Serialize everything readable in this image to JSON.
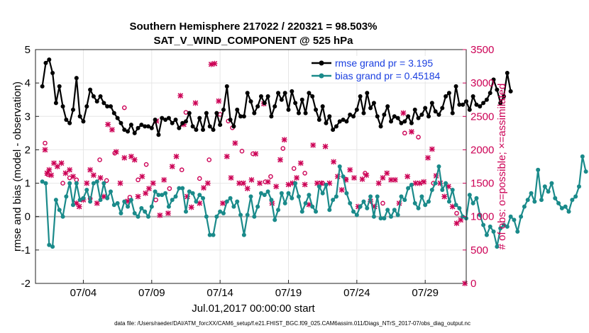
{
  "chart_data": {
    "type": "line",
    "title": "Southern Hemisphere 217022 / 220321 = 98.503%",
    "subtitle": "SAT_V_WIND_COMPONENT @ 525 hPa",
    "xlabel": "Jul.01,2017 00:00:00 start",
    "ylabel_left": "rmse and bias (model - observation)",
    "ylabel_right": "# of obs: o=possible; ×=assimilated",
    "footer": "data file: /Users/raeder/DAI/ATM_forcXX/CAM6_setup/f.e21.FHIST_BGC.f09_025.CAM6assim.011/Diags_NTrS_2017-07/obs_diag_output.nc",
    "xlim": [
      0.5,
      32.0
    ],
    "ylim_left": [
      -2,
      5
    ],
    "ylim_right": [
      0,
      3500
    ],
    "x_ticks": [
      {
        "value": 4,
        "label": "07/04"
      },
      {
        "value": 9,
        "label": "07/09"
      },
      {
        "value": 14,
        "label": "07/14"
      },
      {
        "value": 19,
        "label": "07/19"
      },
      {
        "value": 24,
        "label": "07/24"
      },
      {
        "value": 29,
        "label": "07/29"
      }
    ],
    "y_ticks_left": [
      "-2",
      "-1",
      "0",
      "1",
      "2",
      "3",
      "4",
      "5"
    ],
    "y_ticks_right": [
      "0",
      "500",
      "1000",
      "1500",
      "2000",
      "2500",
      "3000",
      "3500"
    ],
    "x_start": 1.0,
    "x_step": 0.25,
    "series": [
      {
        "name": "rmse grand pr = 3.195",
        "color": "#000000",
        "values": [
          3.9,
          4.6,
          4.7,
          4.3,
          3.4,
          3.9,
          3.3,
          2.9,
          2.8,
          3.2,
          4.15,
          3.0,
          2.85,
          3.3,
          3.8,
          3.6,
          3.45,
          3.6,
          3.4,
          3.3,
          3.3,
          3.1,
          2.95,
          2.8,
          2.6,
          2.55,
          2.75,
          2.5,
          2.65,
          2.75,
          2.7,
          2.7,
          2.65,
          2.9,
          2.45,
          2.95,
          2.9,
          2.95,
          2.8,
          2.9,
          2.65,
          2.8,
          2.85,
          3.1,
          2.7,
          2.6,
          2.95,
          2.6,
          3.1,
          2.7,
          2.6,
          3.1,
          2.75,
          3.2,
          3.9,
          2.9,
          2.7,
          3.2,
          3.0,
          3.0,
          3.7,
          3.45,
          3.1,
          3.3,
          3.6,
          3.4,
          3.6,
          3.0,
          3.3,
          3.7,
          3.5,
          3.7,
          3.2,
          3.75,
          3.4,
          3.1,
          3.5,
          3.1,
          3.7,
          3.6,
          3.2,
          2.9,
          3.3,
          2.8,
          3.0,
          2.6,
          2.7,
          2.85,
          2.9,
          2.85,
          3.05,
          3.0,
          3.2,
          3.6,
          3.1,
          3.7,
          3.25,
          3.4,
          3.0,
          2.7,
          3.05,
          3.3,
          2.85,
          3.0,
          2.95,
          2.8,
          2.85,
          3.0,
          2.8,
          3.2,
          2.95,
          3.05,
          3.25,
          3.0,
          3.4,
          3.15,
          3.05,
          3.25,
          3.6,
          3.7,
          3.1,
          3.9,
          3.35,
          3.35,
          3.45,
          3.2,
          3.6,
          3.35,
          3.3,
          3.4,
          3.5,
          3.7,
          4.1,
          3.8,
          3.4,
          3.6,
          4.3,
          3.75
        ]
      },
      {
        "name": "bias grand pr = 0.45184",
        "color": "#1a8a8a",
        "values": [
          1.05,
          1.0,
          -0.85,
          -0.9,
          0.5,
          0.2,
          0.0,
          0.6,
          1.0,
          0.35,
          1.0,
          0.5,
          0.55,
          0.8,
          0.45,
          1.0,
          1.05,
          0.5,
          1.0,
          0.55,
          0.75,
          0.35,
          0.4,
          0.1,
          0.45,
          0.3,
          0.5,
          0.1,
          0.0,
          0.25,
          0.15,
          0.0,
          0.3,
          0.75,
          0.65,
          0.65,
          0.7,
          0.3,
          0.5,
          0.6,
          0.85,
          0.85,
          0.15,
          0.75,
          0.7,
          0.45,
          0.65,
          0.55,
          0.0,
          -0.55,
          -0.55,
          0.0,
          0.15,
          0.1,
          0.45,
          0.55,
          0.3,
          0.45,
          0.05,
          -0.55,
          0.05,
          0.6,
          0.0,
          0.3,
          0.7,
          0.65,
          0.75,
          0.5,
          -0.1,
          0.2,
          0.7,
          0.4,
          0.7,
          0.55,
          1.0,
          0.6,
          0.15,
          0.4,
          0.65,
          0.3,
          0.15,
          0.9,
          0.7,
          0.95,
          0.2,
          0.5,
          0.6,
          1.5,
          1.2,
          0.7,
          0.4,
          0.15,
          0.05,
          0.3,
          0.45,
          0.25,
          0.6,
          0.0,
          0.6,
          -0.05,
          -0.05,
          0.2,
          0.0,
          0.2,
          0.05,
          0.6,
          0.5,
          0.85,
          0.95,
          0.4,
          0.25,
          0.6,
          0.35,
          0.45,
          0.8,
          1.0,
          1.5,
          0.8,
          1.0,
          0.45,
          0.8,
          0.35,
          0.25,
          0.0,
          -0.05,
          0.65,
          0.4,
          0.55,
          0.05,
          -0.25,
          -0.55,
          -0.3,
          -0.45,
          -0.9,
          -0.35,
          -0.25,
          -0.3,
          0.0,
          -0.1,
          -0.45,
          0.0,
          0.3,
          0.5,
          0.7,
          0.45,
          1.4,
          0.5,
          0.9,
          0.75,
          1.0,
          0.55,
          0.4,
          0.25,
          0.3,
          0.15,
          0.5,
          0.6,
          0.9,
          1.8,
          1.35
        ]
      },
      {
        "name": "possible",
        "color": "#cc0055",
        "marker": "o",
        "x": [
          1.2,
          1.4,
          2.5,
          3.0,
          3.5,
          4.5,
          5.2,
          5.7,
          6.3,
          7.0,
          7.4,
          8.0,
          8.6,
          9.3,
          10.3,
          11.2,
          11.5,
          12.5,
          13.2,
          14.0,
          14.6,
          14.9,
          15.6,
          16.4,
          17.3,
          17.7,
          18.6,
          19.4,
          20.2,
          21.5,
          23.2,
          24.6,
          25.9,
          27.5,
          28.5,
          29.6,
          31.3
        ],
        "values": [
          2100,
          1630,
          1500,
          1580,
          1550,
          1270,
          1850,
          1540,
          1950,
          2630,
          1290,
          1550,
          1780,
          1250,
          1420,
          1700,
          2560,
          1570,
          1850,
          2530,
          2430,
          2330,
          1980,
          1940,
          1520,
          1600,
          2020,
          1720,
          1650,
          1500,
          1560,
          1650,
          1200,
          2250,
          2190,
          1500,
          1050
        ]
      },
      {
        "name": "assimilated",
        "color": "#cc0055",
        "marker": "x",
        "x": [
          1.2,
          1.35,
          1.5,
          1.65,
          1.85,
          2.1,
          2.4,
          2.7,
          3.0,
          3.25,
          3.5,
          3.7,
          4.0,
          4.25,
          4.5,
          4.75,
          5.0,
          5.25,
          5.5,
          5.8,
          6.1,
          6.4,
          6.7,
          7.0,
          7.25,
          7.5,
          7.75,
          8.0,
          8.3,
          8.55,
          8.8,
          9.1,
          9.35,
          9.6,
          9.9,
          10.2,
          10.5,
          10.8,
          11.1,
          11.35,
          11.6,
          11.9,
          12.2,
          12.5,
          12.8,
          13.1,
          13.35,
          13.6,
          13.9,
          14.2,
          14.5,
          14.8,
          15.1,
          15.4,
          15.7,
          16.0,
          16.3,
          16.6,
          16.9,
          17.2,
          17.5,
          17.8,
          18.1,
          18.4,
          18.7,
          19.0,
          19.3,
          19.6,
          19.9,
          20.2,
          20.5,
          20.8,
          21.1,
          21.4,
          21.7,
          22.0,
          22.3,
          22.6,
          22.9,
          23.2,
          23.5,
          23.8,
          24.1,
          24.4,
          24.7,
          25.0,
          25.3,
          25.6,
          25.9,
          26.2,
          26.5,
          26.8,
          27.1,
          27.4,
          27.7,
          28.0,
          28.3,
          28.6,
          28.9,
          29.2,
          29.5,
          29.8,
          30.1,
          30.4,
          30.7,
          31.0,
          31.3,
          31.6,
          31.9
        ],
        "values": [
          2000,
          1650,
          1700,
          1620,
          1800,
          1750,
          1800,
          1650,
          1700,
          1600,
          1200,
          1150,
          1250,
          1500,
          1700,
          1620,
          1200,
          1580,
          1300,
          2380,
          2300,
          1970,
          1500,
          1880,
          1230,
          1900,
          1850,
          1300,
          1600,
          1350,
          1420,
          1500,
          2430,
          1020,
          1550,
          1050,
          1750,
          1900,
          2810,
          2380,
          1300,
          1140,
          2700,
          1200,
          1430,
          1500,
          3280,
          3290,
          2730,
          1200,
          1900,
          1580,
          2100,
          1500,
          1500,
          1420,
          1550,
          1940,
          1500,
          2690,
          1520,
          1200,
          1450,
          1850,
          2150,
          1480,
          1500,
          1580,
          1800,
          1480,
          1180,
          2070,
          1500,
          1500,
          2050,
          1500,
          1820,
          1600,
          1400,
          1550,
          1700,
          1580,
          1150,
          1560,
          1620,
          1230,
          1150,
          1500,
          1580,
          1650,
          1550,
          1550,
          1200,
          2550,
          1600,
          2270,
          1500,
          1500,
          1520,
          1880,
          2010,
          1610,
          1500,
          1300,
          1450,
          1150,
          900,
          950,
          0
        ]
      }
    ],
    "legend": "top-right",
    "grid": true
  }
}
